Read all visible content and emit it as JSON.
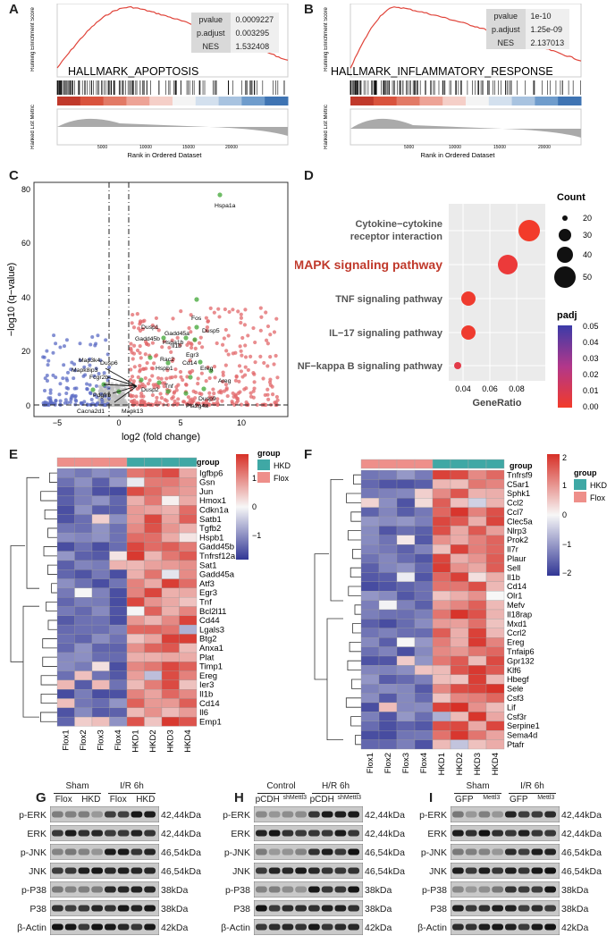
{
  "panels": {
    "A": "A",
    "B": "B",
    "C": "C",
    "D": "D",
    "E": "E",
    "F": "F",
    "G": "G",
    "H": "H",
    "I": "I"
  },
  "gsea": [
    {
      "id": "A",
      "title": "HALLMARK_APOPTOSIS",
      "ylabel_top": "Running Enrichment Score",
      "ylabel_bottom": "Ranked List Metric",
      "xlabel": "Rank in Ordered Dataset",
      "ticks": [
        "5000",
        "10000",
        "15000",
        "20000"
      ],
      "stats": [
        {
          "k": "pvalue",
          "v": "0.0009227"
        },
        {
          "k": "p.adjust",
          "v": "0.003295"
        },
        {
          "k": "NES",
          "v": "1.532408"
        }
      ]
    },
    {
      "id": "B",
      "title": "HALLMARK_INFLAMMATORY_RESPONSE",
      "ylabel_top": "Running Enrichment Score",
      "ylabel_bottom": "Ranked List Metric",
      "xlabel": "Rank in Ordered Dataset",
      "ticks": [
        "5000",
        "10000",
        "15000",
        "20000"
      ],
      "stats": [
        {
          "k": "pvalue",
          "v": "1e-10"
        },
        {
          "k": "p.adjust",
          "v": "1.25e-09"
        },
        {
          "k": "NES",
          "v": "2.137013"
        }
      ]
    }
  ],
  "volcano": {
    "xlabel": "log2 (fold change)",
    "ylabel": "−log10 (q−value)",
    "xticks": [
      "−5",
      "0",
      "5",
      "10"
    ],
    "yticks": [
      "0",
      "20",
      "40",
      "60",
      "80"
    ],
    "genes": [
      "Hspa1a",
      "Fos",
      "Gadd45a",
      "Dusp1",
      "Hspa1b",
      "Dusp5",
      "Gadd45b",
      "Il1b",
      "Egr3",
      "Map3k4",
      "Dusp6",
      "Mapk8ip3",
      "Fcgr2b",
      "Pdgfrb",
      "Cacna2d1",
      "Mapk13",
      "Hspb1",
      "Rac2",
      "Ereg",
      "Cd14",
      "Areg",
      "Dusp9",
      "Pla2g4a",
      "Dusp2",
      "Tnf"
    ]
  },
  "dotplot": {
    "xlabel": "GeneRatio",
    "xticks": [
      "0.04",
      "0.06",
      "0.08"
    ],
    "pathways": [
      "Cytokine−cytokine",
      "receptor interaction",
      "MAPK signaling pathway",
      "TNF signaling pathway",
      "IL−17 signaling pathway",
      "NF−kappa B signaling pathway"
    ],
    "count_title": "Count",
    "count_values": [
      "20",
      "30",
      "40",
      "50"
    ],
    "padj_title": "padj",
    "padj_values": [
      "0.05",
      "0.04",
      "0.03",
      "0.02",
      "0.01",
      "0.00"
    ]
  },
  "heatmapE": {
    "legend_title": "group",
    "groups": [
      "HKD",
      "Flox"
    ],
    "scale": [
      "1",
      "0",
      "−1"
    ],
    "columns": [
      "Flox1",
      "Flox2",
      "Flox3",
      "Flox4",
      "HKD1",
      "HKD2",
      "HKD3",
      "HKD4"
    ],
    "genes": [
      "Igfbp6",
      "Gsn",
      "Jun",
      "Hmox1",
      "Cdkn1a",
      "Satb1",
      "Tgfb2",
      "Hspb1",
      "Gadd45b",
      "Tnfrsf12a",
      "Sat1",
      "Gadd45a",
      "Atf3",
      "Egr3",
      "Tnf",
      "Bcl2l11",
      "Cd44",
      "Lgals3",
      "Btg2",
      "Anxa1",
      "Plat",
      "Timp1",
      "Ereg",
      "Ier3",
      "Il1b",
      "Cd14",
      "Il6",
      "Emp1"
    ]
  },
  "heatmapF": {
    "legend_title": "group",
    "groups": [
      "HKD",
      "Flox"
    ],
    "scale": [
      "2",
      "1",
      "0",
      "−1",
      "−2"
    ],
    "columns": [
      "Flox1",
      "Flox2",
      "Flox3",
      "Flox4",
      "HKD1",
      "HKD2",
      "HKD3",
      "HKD4"
    ],
    "genes": [
      "Tnfrsf9",
      "C5ar1",
      "Sphk1",
      "Ccl2",
      "Ccl7",
      "Clec5a",
      "Nlrp3",
      "Prok2",
      "Il7r",
      "Plaur",
      "Sell",
      "Il1b",
      "Cd14",
      "Olr1",
      "Mefv",
      "Il18rap",
      "Mxd1",
      "Ccrl2",
      "Ereg",
      "Tnfaip6",
      "Gpr132",
      "Klf6",
      "Hbegf",
      "Sele",
      "Csf3",
      "Lif",
      "Csf3r",
      "Serpine1",
      "Sema4d",
      "Ptafr"
    ]
  },
  "blots": [
    {
      "id": "G",
      "groups": [
        "Sham",
        "I/R 6h"
      ],
      "lanes": [
        "Flox",
        "HKD",
        "Flox",
        "HKD"
      ],
      "proteins": [
        "p-ERK",
        "ERK",
        "p-JNK",
        "JNK",
        "p-P38",
        "P38",
        "β-Actin"
      ],
      "sizes": [
        "42,44kDa",
        "42,44kDa",
        "46,54kDa",
        "46,54kDa",
        "38kDa",
        "38kDa",
        "42kDa"
      ]
    },
    {
      "id": "H",
      "groups": [
        "Control",
        "H/R 6h"
      ],
      "lanes": [
        "pCDH",
        "shMettl3",
        "pCDH",
        "shMettl3"
      ],
      "proteins": [
        "p-ERK",
        "ERK",
        "p-JNK",
        "JNK",
        "p-P38",
        "P38",
        "β-Actin"
      ],
      "sizes": [
        "42,44kDa",
        "42,44kDa",
        "46,54kDa",
        "46,54kDa",
        "38kDa",
        "38kDa",
        "42kDa"
      ]
    },
    {
      "id": "I",
      "groups": [
        "Sham",
        "I/R 6h"
      ],
      "lanes": [
        "GFP",
        "Mettl3",
        "GFP",
        "Mettl3"
      ],
      "proteins": [
        "p-ERK",
        "ERK",
        "p-JNK",
        "JNK",
        "p-P38",
        "P38",
        "β-Actin"
      ],
      "sizes": [
        "42,44kDa",
        "42,44kDa",
        "46,54kDa",
        "46,54kDa",
        "38kDa",
        "38kDa",
        "42kDa"
      ]
    }
  ]
}
